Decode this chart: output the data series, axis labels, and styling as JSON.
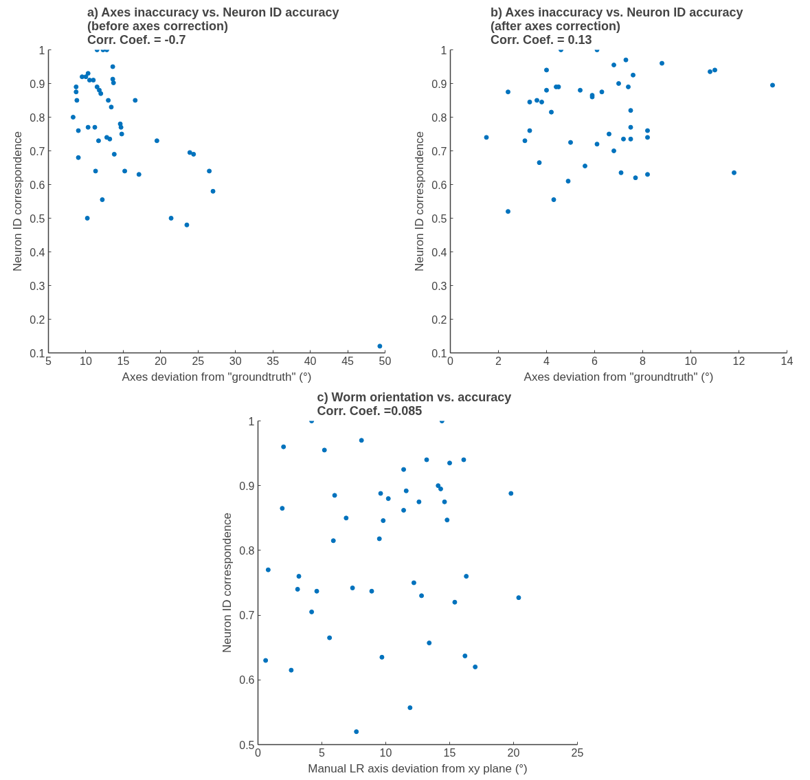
{
  "chart_data": [
    {
      "type": "scatter",
      "title": "a)   Axes inaccuracy vs. Neuron ID accuracy",
      "subtitle": "(before axes correction)",
      "annotations": [
        "Corr. Coef. = -0.7"
      ],
      "xlabel": "Axes deviation from \"groundtruth\" (°)",
      "ylabel": "Neuron ID correspondence",
      "xlim": [
        5,
        50
      ],
      "ylim": [
        0.1,
        1
      ],
      "xticks": [
        5,
        10,
        15,
        20,
        25,
        30,
        35,
        40,
        45,
        50
      ],
      "yticks": [
        0.1,
        0.2,
        0.3,
        0.4,
        0.5,
        0.6,
        0.7,
        0.8,
        0.9,
        1
      ],
      "marker": "circle",
      "grid": false,
      "series": [
        {
          "color": "#0072bd",
          "x": [
            8.3,
            8.7,
            8.7,
            8.8,
            9,
            9,
            9.5,
            10,
            10.3,
            10.5,
            10.3,
            10.2,
            11,
            11.2,
            11.3,
            11.5,
            11.7,
            11.8,
            12,
            12.2,
            11.5,
            12.3,
            12.8,
            12.8,
            13.2,
            13,
            13.4,
            13.6,
            13.6,
            13.7,
            13.8,
            14.6,
            14.7,
            14.8,
            15.2,
            16.6,
            17.1,
            19.5,
            21.4,
            23.5,
            23.9,
            24.4,
            26.5,
            27,
            49.3
          ],
          "values": [
            0.8,
            0.89,
            0.875,
            0.85,
            0.76,
            0.68,
            0.92,
            0.92,
            0.93,
            0.91,
            0.77,
            0.5,
            0.91,
            0.77,
            0.64,
            0.89,
            0.73,
            0.88,
            0.87,
            0.555,
            1,
            1,
            1,
            0.74,
            0.735,
            0.85,
            0.83,
            0.95,
            0.913,
            0.902,
            0.69,
            0.78,
            0.77,
            0.75,
            0.64,
            0.85,
            0.63,
            0.73,
            0.5,
            0.48,
            0.695,
            0.69,
            0.64,
            0.58,
            0.12
          ]
        }
      ]
    },
    {
      "type": "scatter",
      "title": "b)  Axes inaccuracy vs. Neuron ID accuracy",
      "subtitle": "(after axes correction)",
      "annotations": [
        "Corr. Coef. = 0.13"
      ],
      "xlabel": "Axes deviation from \"groundtruth\" (°)",
      "ylabel": "Neuron ID correspondence",
      "xlim": [
        0,
        14
      ],
      "ylim": [
        0.1,
        1
      ],
      "xticks": [
        0,
        2,
        4,
        6,
        8,
        10,
        12,
        14
      ],
      "yticks": [
        0.1,
        0.2,
        0.3,
        0.4,
        0.5,
        0.6,
        0.7,
        0.8,
        0.9,
        1
      ],
      "marker": "circle",
      "grid": false,
      "series": [
        {
          "color": "#0072bd",
          "x": [
            1.5,
            2.4,
            2.4,
            3.1,
            3.3,
            3.3,
            3.6,
            3.7,
            3.8,
            4,
            4,
            4.2,
            4.3,
            4.4,
            4.5,
            4.6,
            4.9,
            5,
            5.4,
            5.6,
            5.9,
            5.9,
            6.1,
            6.1,
            6.3,
            6.6,
            6.8,
            6.8,
            7,
            7.1,
            7.2,
            7.3,
            7.4,
            7.5,
            7.5,
            7.5,
            7.6,
            7.7,
            8.2,
            8.2,
            8.2,
            8.8,
            10.8,
            11,
            11.8,
            13.4
          ],
          "values": [
            0.74,
            0.52,
            0.875,
            0.73,
            0.76,
            0.845,
            0.85,
            0.665,
            0.845,
            0.88,
            0.94,
            0.815,
            0.555,
            0.89,
            0.89,
            1,
            0.61,
            0.725,
            0.88,
            0.655,
            0.865,
            0.86,
            1,
            0.72,
            0.875,
            0.75,
            0.955,
            0.7,
            0.9,
            0.635,
            0.735,
            0.97,
            0.89,
            0.82,
            0.77,
            0.735,
            0.925,
            0.62,
            0.76,
            0.74,
            0.63,
            0.96,
            0.935,
            0.94,
            0.635,
            0.895
          ]
        }
      ]
    },
    {
      "type": "scatter",
      "title": "c)   Worm orientation vs. accuracy",
      "annotations": [
        "Corr. Coef. =0.085"
      ],
      "xlabel": "Manual LR axis deviation from xy plane (°)",
      "ylabel": "Neuron ID correspondence",
      "xlim": [
        0,
        25
      ],
      "ylim": [
        0.5,
        1
      ],
      "xticks": [
        0,
        5,
        10,
        15,
        20,
        25
      ],
      "yticks": [
        0.5,
        0.6,
        0.7,
        0.8,
        0.9,
        1
      ],
      "marker": "circle",
      "grid": false,
      "series": [
        {
          "color": "#0072bd",
          "x": [
            0.6,
            0.8,
            1.9,
            2,
            2.6,
            3.1,
            3.2,
            4.2,
            4.2,
            4.6,
            5.2,
            5.6,
            5.9,
            6,
            6.9,
            7.4,
            7.7,
            8.1,
            8.9,
            9.5,
            9.6,
            9.7,
            9.8,
            10.2,
            11.4,
            11.4,
            11.6,
            12.2,
            12.6,
            12.8,
            13.2,
            13.4,
            14.1,
            14.3,
            14.4,
            14.6,
            14.8,
            15,
            15.4,
            16.1,
            16.2,
            16.3,
            17,
            19.8,
            20.4,
            11.9
          ],
          "values": [
            0.63,
            0.77,
            0.865,
            0.96,
            0.615,
            0.74,
            0.76,
            1,
            0.705,
            0.737,
            0.955,
            0.665,
            0.815,
            0.885,
            0.85,
            0.742,
            0.52,
            0.97,
            0.737,
            0.818,
            0.888,
            0.635,
            0.846,
            0.88,
            0.925,
            0.862,
            0.892,
            0.75,
            0.875,
            0.73,
            0.94,
            0.657,
            0.9,
            0.895,
            1,
            0.875,
            0.847,
            0.935,
            0.72,
            0.94,
            0.637,
            0.76,
            0.62,
            0.888,
            0.727,
            0.557
          ]
        }
      ]
    }
  ]
}
